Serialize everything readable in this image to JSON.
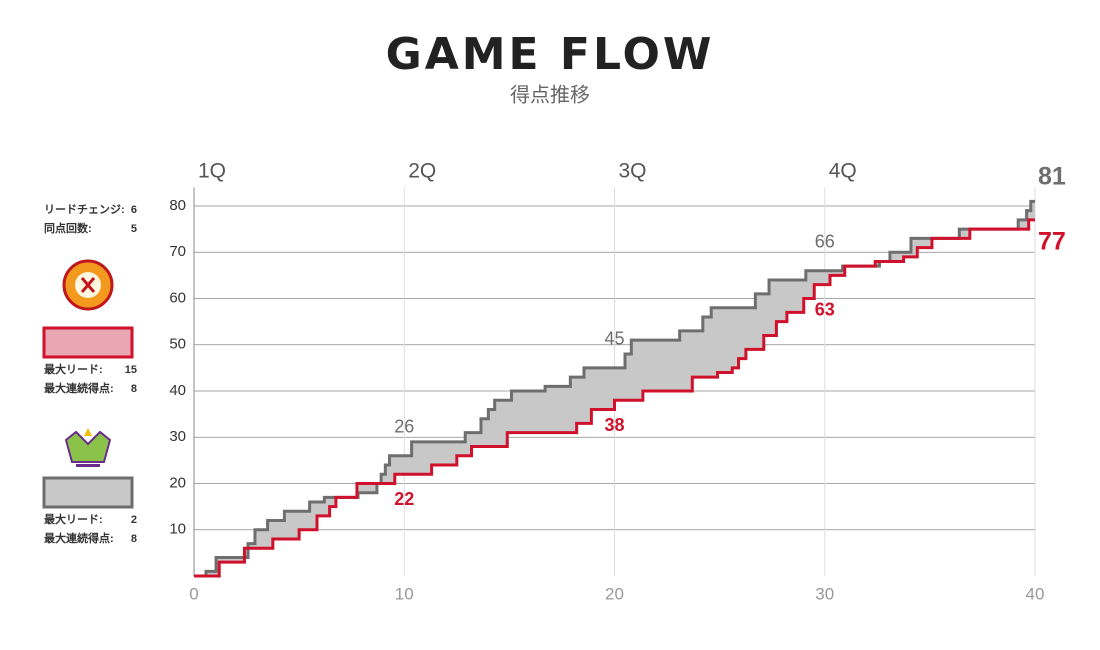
{
  "chart_data": {
    "type": "step",
    "title": "GAME FLOW",
    "subtitle": "得点推移",
    "quarters": [
      "1Q",
      "2Q",
      "3Q",
      "4Q"
    ],
    "xlim": [
      0,
      40
    ],
    "xticks": [
      0,
      10,
      20,
      30,
      40
    ],
    "ylim": [
      0,
      84
    ],
    "yticks": [
      10,
      20,
      30,
      40,
      50,
      60,
      70,
      80
    ],
    "grid": true,
    "fill_between": "#c8c8c8",
    "series": [
      {
        "color": "#6e6e6e",
        "x": [
          0,
          0.57,
          1.05,
          2.57,
          2.9,
          3.5,
          4.3,
          5.5,
          6.2,
          7.8,
          8.7,
          8.9,
          9.1,
          9.3,
          10.35,
          12.9,
          13.65,
          14.0,
          14.3,
          15.1,
          16.7,
          17.9,
          18.55,
          20.5,
          20.8,
          23.1,
          24.2,
          24.6,
          26.7,
          27.35,
          29.1,
          30.85,
          32.6,
          33.1,
          34.1,
          36.4,
          39.2,
          39.6,
          39.8,
          40
        ],
        "values": [
          0,
          1,
          4,
          7,
          10,
          12,
          14,
          16,
          17,
          18,
          20,
          22,
          24,
          26,
          29,
          31,
          34,
          36,
          38,
          40,
          41,
          43,
          45,
          48,
          51,
          53,
          56,
          58,
          61,
          64,
          66,
          67,
          68,
          70,
          73,
          75,
          77,
          79,
          81,
          81
        ],
        "quarter_end_labels": [
          26,
          45,
          66
        ],
        "legend_fill": "#c8c8c8"
      },
      {
        "color": "#d0112b",
        "x": [
          0,
          1.2,
          2.4,
          3.75,
          5.0,
          5.85,
          6.45,
          6.75,
          7.75,
          9.55,
          11.3,
          12.5,
          13.2,
          14.9,
          18.2,
          18.9,
          20.0,
          21.35,
          23.7,
          24.9,
          25.6,
          25.9,
          26.25,
          27.1,
          27.7,
          28.2,
          29.0,
          29.5,
          30.25,
          30.95,
          32.4,
          33.75,
          34.4,
          35.1,
          36.9,
          39.7,
          40
        ],
        "values": [
          0,
          3,
          6,
          8,
          10,
          13,
          15,
          17,
          20,
          22,
          24,
          26,
          28,
          31,
          33,
          36,
          38,
          40,
          43,
          44,
          45,
          47,
          49,
          52,
          55,
          57,
          60,
          63,
          65,
          67,
          68,
          69,
          71,
          73,
          75,
          77,
          77
        ],
        "quarter_end_labels": [
          22,
          38,
          63
        ],
        "legend_fill": "#e8a7b2"
      }
    ],
    "stats": {
      "game": [
        {
          "label": "リードチェンジ:",
          "value": 6
        },
        {
          "label": "同点回数:",
          "value": 5
        }
      ],
      "teams": [
        [
          {
            "label": "最大リード:",
            "value": 2
          },
          {
            "label": "最大連続得点:",
            "value": 8
          }
        ],
        [
          {
            "label": "最大リード:",
            "value": 15
          },
          {
            "label": "最大連続得点:",
            "value": 8
          }
        ]
      ]
    }
  }
}
